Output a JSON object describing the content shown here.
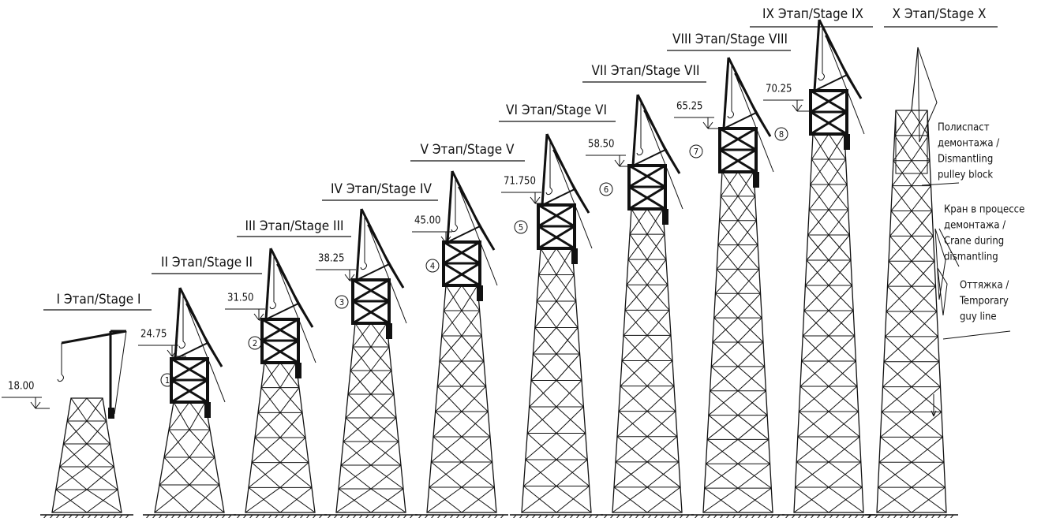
{
  "stages": [
    {
      "title": "I Этап/Stage I",
      "elevation": "18.00"
    },
    {
      "title": "II Этап/Stage II",
      "elevation": "24.75",
      "marker": "1"
    },
    {
      "title": "III Этап/Stage III",
      "elevation": "31.50",
      "marker": "2"
    },
    {
      "title": "IV Этап/Stage IV",
      "elevation": "38.25",
      "marker": "3"
    },
    {
      "title": "V Этап/Stage V",
      "elevation": "45.00",
      "marker": "4"
    },
    {
      "title": "VI Этап/Stage VI",
      "elevation": "71.750",
      "marker": "5"
    },
    {
      "title": "VII Этап/Stage VII",
      "elevation": "58.50",
      "marker": "6"
    },
    {
      "title": "VIII Этап/Stage VIII",
      "elevation": "65.25",
      "marker": "7"
    },
    {
      "title": "IX Этап/Stage IX",
      "elevation": "70.25",
      "marker": "8"
    },
    {
      "title": "X Этап/Stage X"
    }
  ],
  "annotations": [
    {
      "lines": [
        "Полиспаст",
        "демонтажа /",
        "Dismantling",
        "pulley block"
      ]
    },
    {
      "lines": [
        "Кран в процессе",
        "демонтажа /",
        "Crane during",
        "dismantling"
      ]
    },
    {
      "lines": [
        "Оттяжка /",
        "Temporary",
        "guy line"
      ]
    }
  ]
}
